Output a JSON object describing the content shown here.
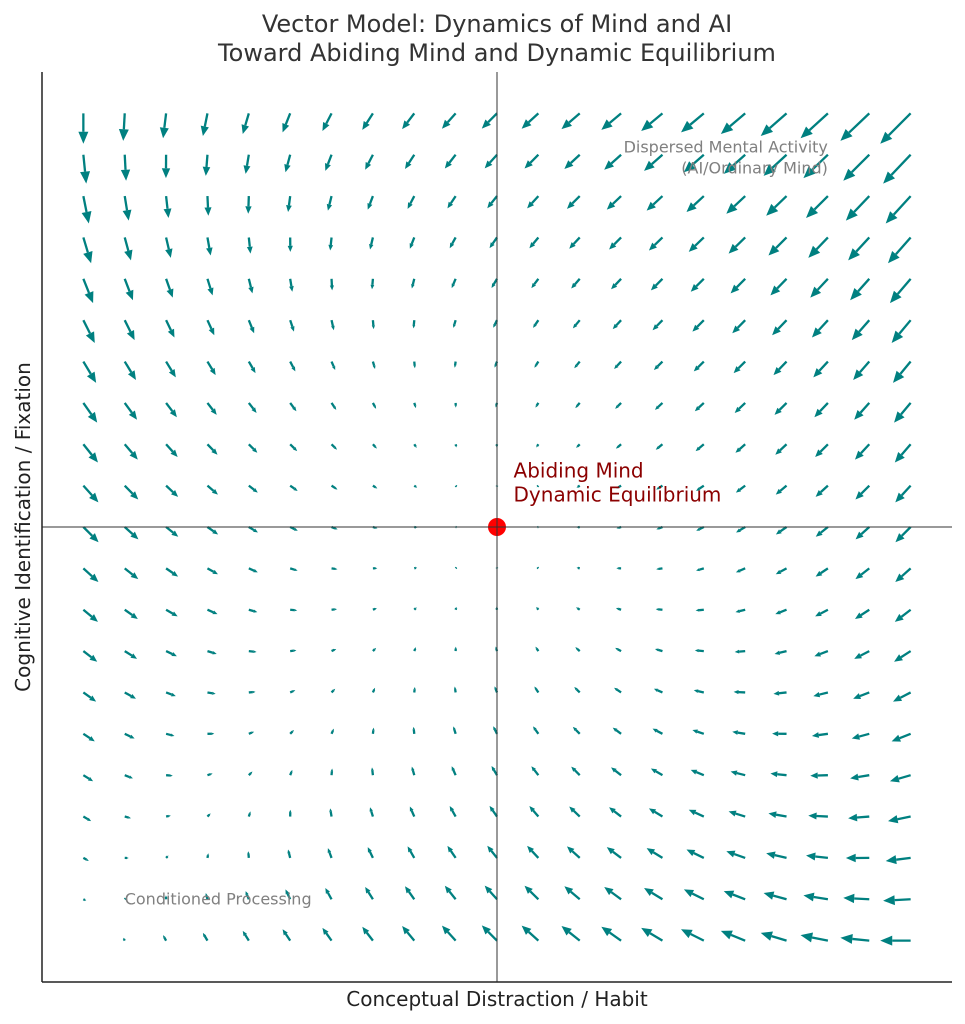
{
  "chart_data": {
    "type": "quiver",
    "title": [
      "Vector Model: Dynamics of Mind and AI",
      "Toward Abiding Mind and Dynamic Equilibrium"
    ],
    "xlabel": "Conceptual Distraction / Habit",
    "ylabel": "Cognitive Identification / Fixation",
    "xlim": [
      -11,
      11
    ],
    "ylim": [
      -11,
      11
    ],
    "ticks_visible": false,
    "grid": false,
    "reference_lines": {
      "x": 0,
      "y": 0
    },
    "field": {
      "x_range": [
        -10,
        10
      ],
      "y_range": [
        -10,
        10
      ],
      "grid_points": 21,
      "u_equation": "-x - y^2 / 10",
      "v_equation": "-y - x^2 / 10",
      "color": "#008080"
    },
    "equilibrium_point": {
      "x": 0,
      "y": 0,
      "color": "#ff0000"
    },
    "annotations": [
      {
        "text": [
          "Abiding Mind",
          "Dynamic Equilibrium"
        ],
        "x": 0.4,
        "y": 0.5,
        "color": "#8b0000"
      },
      {
        "text": [
          "Dispersed Mental Activity",
          "(AI/Ordinary Mind)"
        ],
        "x": 8,
        "y": 9,
        "color": "#808080"
      },
      {
        "text": [
          "Conditioned Processing"
        ],
        "x": -9,
        "y": -9,
        "color": "#808080"
      }
    ]
  }
}
